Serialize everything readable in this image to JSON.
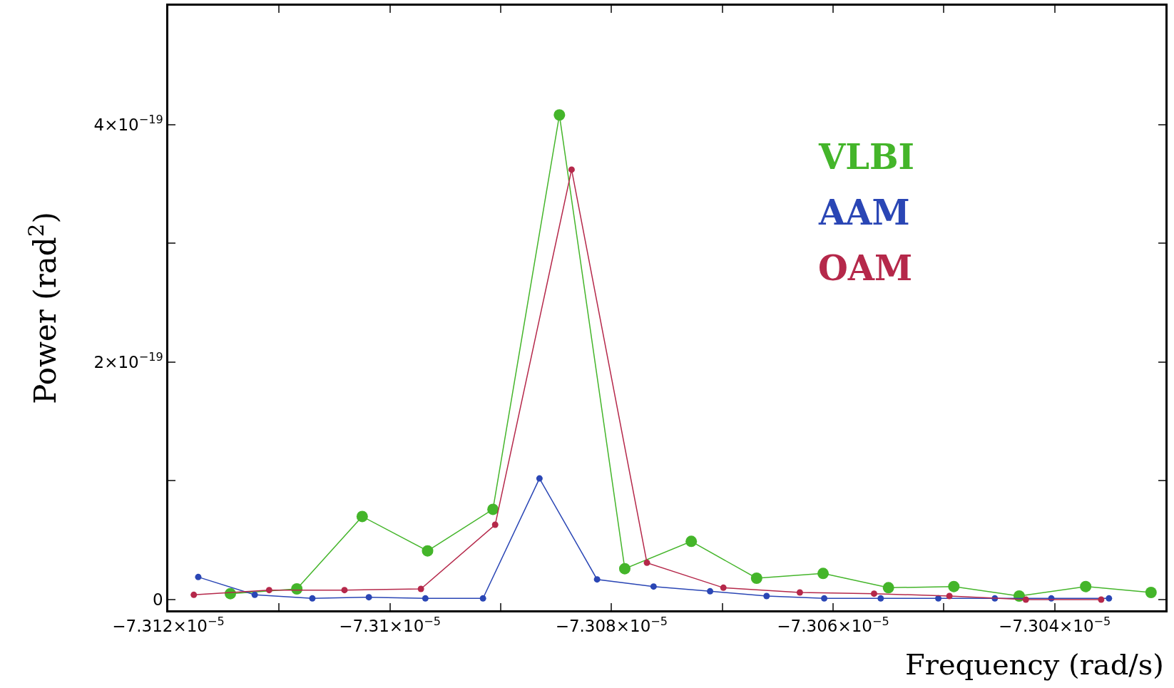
{
  "chart_data": {
    "type": "line",
    "xlabel": "Frequency (rad/s)",
    "ylabel": "Power (rad$^{2}$)",
    "xlim": [
      -7.312e-05,
      -7.303e-05
    ],
    "ylim": [
      -9e-21,
      5e-19
    ],
    "xticks": [
      {
        "value": -7.312e-05,
        "label": "−7.312×10$^{−5}$"
      },
      {
        "value": -7.311e-05,
        "label": null
      },
      {
        "value": -7.31e-05,
        "label": "−7.31×10$^{−5}$"
      },
      {
        "value": -7.309e-05,
        "label": null
      },
      {
        "value": -7.308e-05,
        "label": "−7.308×10$^{−5}$"
      },
      {
        "value": -7.307e-05,
        "label": null
      },
      {
        "value": -7.306e-05,
        "label": "−7.306×10$^{−5}$"
      },
      {
        "value": -7.305e-05,
        "label": null
      },
      {
        "value": -7.304e-05,
        "label": "−7.304×10$^{−5}$"
      }
    ],
    "yticks": [
      {
        "value": 0,
        "label": "0"
      },
      {
        "value": 1e-19,
        "label": null
      },
      {
        "value": 2e-19,
        "label": "2×10$^{−19}$"
      },
      {
        "value": 3e-19,
        "label": null
      },
      {
        "value": 4e-19,
        "label": "4×10$^{−19}$"
      }
    ],
    "grid": false,
    "legend": "top right",
    "marker": "circle",
    "line_style": "solid",
    "series": [
      {
        "name": "VLBI",
        "color": "#44b52a",
        "x": [
          -7.31144e-05,
          -7.31084e-05,
          -7.31025e-05,
          -7.30966e-05,
          -7.30907e-05,
          -7.30847e-05,
          -7.30788e-05,
          -7.30728e-05,
          -7.30669e-05,
          -7.30609e-05,
          -7.3055e-05,
          -7.30491e-05,
          -7.30432e-05,
          -7.30372e-05,
          -7.30313e-05
        ],
        "values": [
          5e-21,
          9e-21,
          7e-20,
          4.1e-20,
          7.6e-20,
          4.08e-19,
          2.6e-20,
          4.9e-20,
          1.8e-20,
          2.2e-20,
          1e-20,
          1.1e-20,
          3e-21,
          1.1e-20,
          6e-21
        ]
      },
      {
        "name": "AAM",
        "color": "#2a46b5",
        "x": [
          -7.31173e-05,
          -7.31122e-05,
          -7.3107e-05,
          -7.31019e-05,
          -7.30968e-05,
          -7.30916e-05,
          -7.30865e-05,
          -7.30813e-05,
          -7.30762e-05,
          -7.30711e-05,
          -7.3066e-05,
          -7.30608e-05,
          -7.30557e-05,
          -7.30505e-05,
          -7.30454e-05,
          -7.30403e-05,
          -7.30351e-05
        ],
        "values": [
          1.9e-20,
          4e-21,
          1e-21,
          2e-21,
          1e-21,
          1e-21,
          1.02e-19,
          1.7e-20,
          1.1e-20,
          7e-21,
          3e-21,
          1e-21,
          1e-21,
          1e-21,
          1e-21,
          1e-21,
          1e-21
        ]
      },
      {
        "name": "OAM",
        "color": "#b5284a",
        "x": [
          -7.31177e-05,
          -7.31109e-05,
          -7.31041e-05,
          -7.30972e-05,
          -7.30905e-05,
          -7.30836e-05,
          -7.30768e-05,
          -7.30699e-05,
          -7.3063e-05,
          -7.30563e-05,
          -7.30495e-05,
          -7.30426e-05,
          -7.30358e-05
        ],
        "values": [
          4e-21,
          8e-21,
          8e-21,
          9e-21,
          6.3e-20,
          3.62e-19,
          3.1e-20,
          1e-20,
          6e-21,
          5e-21,
          3e-21,
          0,
          0
        ]
      }
    ]
  }
}
